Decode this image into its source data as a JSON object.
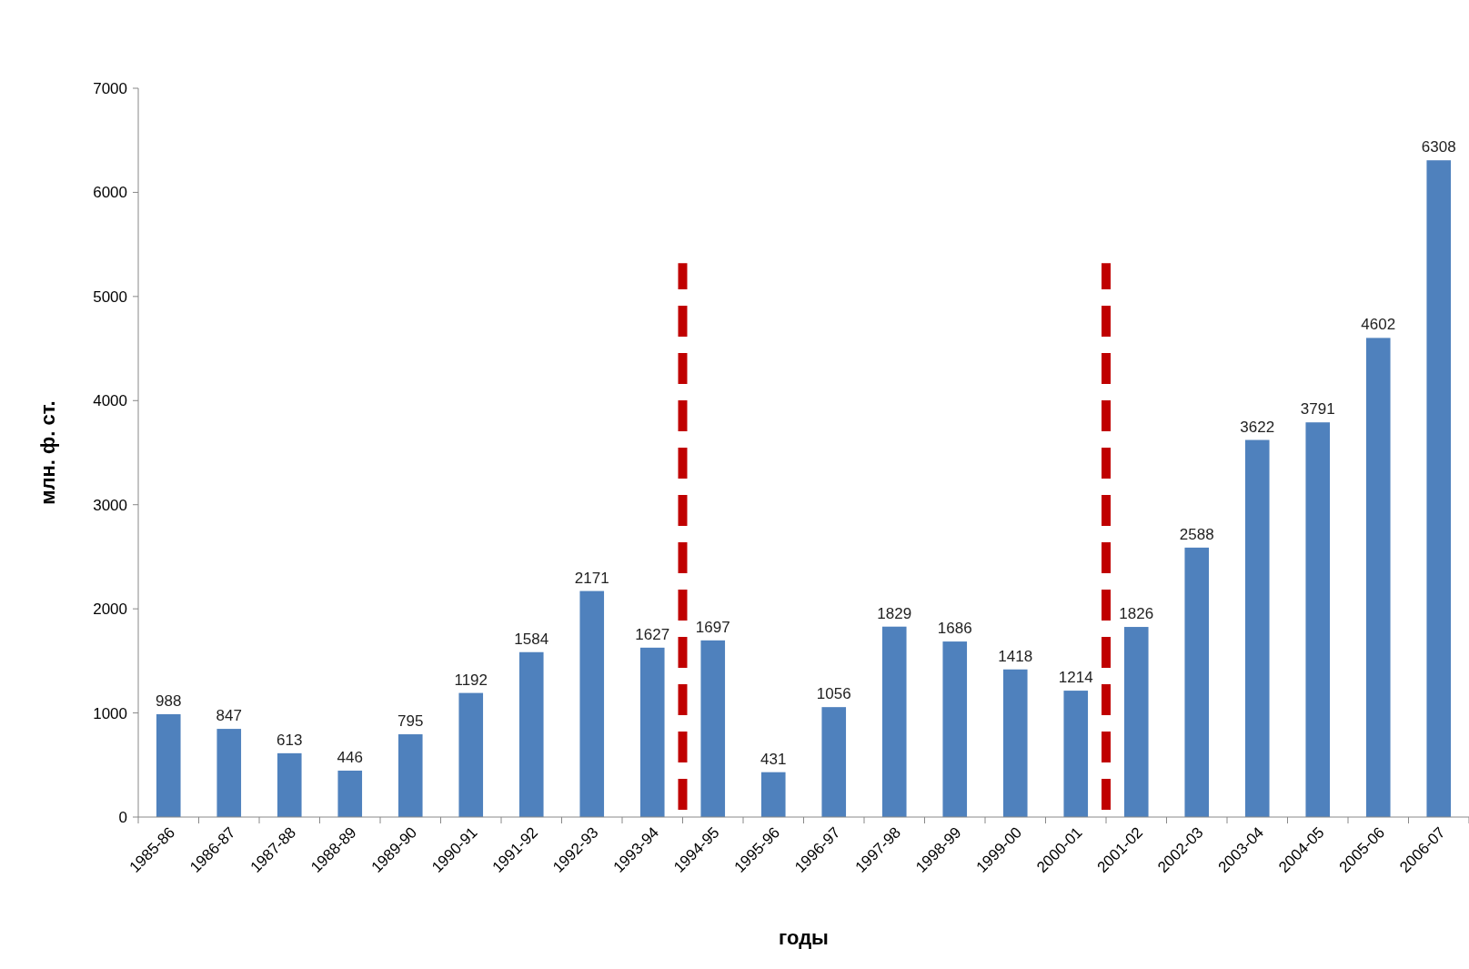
{
  "chart_data": {
    "type": "bar",
    "xlabel": "годы",
    "ylabel": "млн. ф. ст.",
    "categories": [
      "1985-86",
      "1986-87",
      "1987-88",
      "1988-89",
      "1989-90",
      "1990-91",
      "1991-92",
      "1992-93",
      "1993-94",
      "1994-95",
      "1995-96",
      "1996-97",
      "1997-98",
      "1998-99",
      "1999-00",
      "2000-01",
      "2001-02",
      "2002-03",
      "2003-04",
      "2004-05",
      "2005-06",
      "2006-07"
    ],
    "values": [
      988,
      847,
      613,
      446,
      795,
      1192,
      1584,
      2171,
      1627,
      1697,
      431,
      1056,
      1829,
      1686,
      1418,
      1214,
      1826,
      2588,
      3622,
      3791,
      4602,
      6308
    ],
    "color": "#4f81bd",
    "ylim": [
      0,
      7000
    ],
    "yticks": [
      0,
      1000,
      2000,
      3000,
      4000,
      5000,
      6000,
      7000
    ],
    "data_labels": true,
    "grid": false,
    "ref_lines": [
      {
        "axis": "x",
        "value": "1994-95",
        "color": "#c00000",
        "line_style": "dashed"
      },
      {
        "axis": "x",
        "value": "2001-02",
        "color": "#c00000",
        "line_style": "dashed"
      }
    ]
  }
}
